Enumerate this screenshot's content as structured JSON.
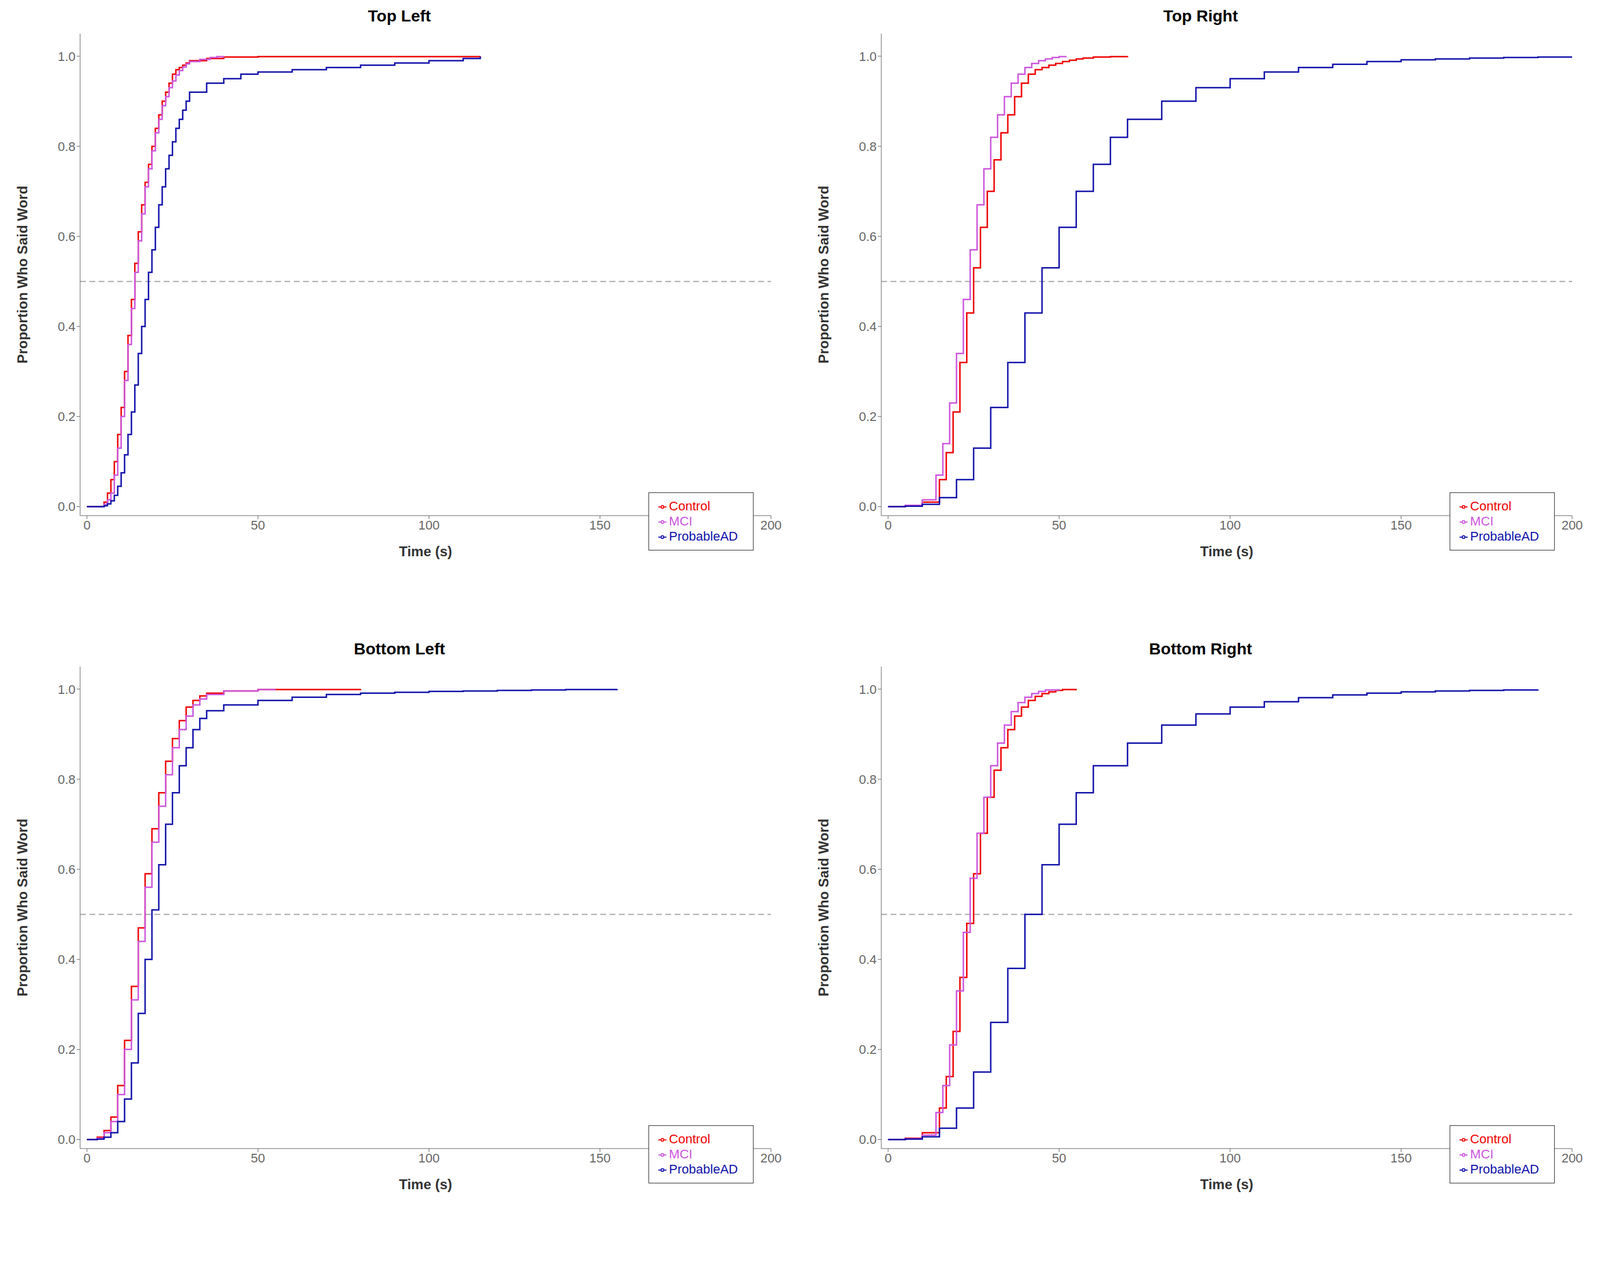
{
  "chart_data": [
    {
      "type": "step",
      "title": "Top Left",
      "x_label": "Time (s)",
      "y_label": "Proportion Who Said Word",
      "xlim": [
        -2,
        200
      ],
      "ylim": [
        -0.02,
        1.05
      ],
      "xticks": [
        0,
        50,
        100,
        150,
        200
      ],
      "yticks": [
        {
          "value": 0,
          "label": "0.0"
        },
        0.2,
        0.4,
        0.6,
        0.8,
        {
          "value": 1,
          "label": "1.0"
        }
      ],
      "grid": false,
      "legend": "lower right",
      "reference_lines": [
        {
          "y": 0.5,
          "color": "#aaaaaa",
          "line_style": "dashed"
        }
      ],
      "series": [
        {
          "name": "Control",
          "color": "#EE0000",
          "x": [
            0,
            5,
            6,
            7,
            8,
            9,
            10,
            11,
            12,
            13,
            14,
            15,
            16,
            17,
            18,
            19,
            20,
            21,
            22,
            23,
            24,
            25,
            26,
            27,
            28,
            29,
            30,
            35,
            40,
            50,
            115
          ],
          "values": [
            0,
            0.01,
            0.03,
            0.06,
            0.1,
            0.16,
            0.22,
            0.3,
            0.38,
            0.46,
            0.54,
            0.61,
            0.67,
            0.72,
            0.76,
            0.8,
            0.84,
            0.87,
            0.9,
            0.92,
            0.94,
            0.96,
            0.97,
            0.975,
            0.98,
            0.985,
            0.99,
            0.995,
            0.998,
            0.999,
            1.0
          ]
        },
        {
          "name": "MCI",
          "color": "#CC55DD",
          "x": [
            0,
            5,
            6,
            7,
            8,
            9,
            10,
            11,
            12,
            13,
            14,
            15,
            16,
            17,
            18,
            19,
            20,
            21,
            22,
            23,
            24,
            25,
            26,
            27,
            28,
            29,
            30,
            33,
            36,
            38,
            40
          ],
          "values": [
            0,
            0.005,
            0.015,
            0.03,
            0.07,
            0.13,
            0.2,
            0.28,
            0.36,
            0.44,
            0.52,
            0.59,
            0.65,
            0.71,
            0.75,
            0.79,
            0.83,
            0.86,
            0.89,
            0.91,
            0.93,
            0.945,
            0.958,
            0.968,
            0.976,
            0.983,
            0.988,
            0.993,
            0.997,
            0.999,
            1.0
          ]
        },
        {
          "name": "ProbableAD",
          "color": "#1111AA",
          "x": [
            0,
            5,
            6,
            7,
            8,
            9,
            10,
            11,
            12,
            13,
            14,
            15,
            16,
            17,
            18,
            19,
            20,
            21,
            22,
            23,
            24,
            25,
            26,
            27,
            28,
            29,
            30,
            35,
            40,
            45,
            50,
            60,
            70,
            80,
            90,
            100,
            110,
            115
          ],
          "values": [
            0,
            0.002,
            0.006,
            0.013,
            0.025,
            0.045,
            0.075,
            0.115,
            0.16,
            0.21,
            0.27,
            0.34,
            0.4,
            0.46,
            0.52,
            0.57,
            0.62,
            0.67,
            0.71,
            0.75,
            0.78,
            0.81,
            0.84,
            0.86,
            0.88,
            0.9,
            0.92,
            0.94,
            0.95,
            0.96,
            0.965,
            0.97,
            0.975,
            0.98,
            0.985,
            0.99,
            0.995,
            0.999
          ]
        }
      ]
    },
    {
      "type": "step",
      "title": "Top Right",
      "x_label": "Time (s)",
      "y_label": "Proportion Who Said Word",
      "xlim": [
        -2,
        200
      ],
      "ylim": [
        -0.02,
        1.05
      ],
      "xticks": [
        0,
        50,
        100,
        150,
        200
      ],
      "yticks": [
        {
          "value": 0,
          "label": "0.0"
        },
        0.2,
        0.4,
        0.6,
        0.8,
        {
          "value": 1,
          "label": "1.0"
        }
      ],
      "grid": false,
      "legend": "lower right",
      "reference_lines": [
        {
          "y": 0.5,
          "color": "#aaaaaa",
          "line_style": "dashed"
        }
      ],
      "series": [
        {
          "name": "Control",
          "color": "#EE0000",
          "x": [
            0,
            5,
            10,
            15,
            17,
            19,
            21,
            23,
            25,
            27,
            29,
            31,
            33,
            35,
            37,
            39,
            41,
            43,
            45,
            47,
            49,
            51,
            53,
            55,
            57,
            60,
            65,
            70
          ],
          "values": [
            0,
            0.002,
            0.01,
            0.06,
            0.12,
            0.21,
            0.32,
            0.43,
            0.53,
            0.62,
            0.7,
            0.77,
            0.83,
            0.87,
            0.91,
            0.94,
            0.96,
            0.97,
            0.975,
            0.98,
            0.984,
            0.988,
            0.991,
            0.994,
            0.996,
            0.998,
            0.999,
            1.0
          ]
        },
        {
          "name": "MCI",
          "color": "#CC55DD",
          "x": [
            0,
            5,
            10,
            14,
            16,
            18,
            20,
            22,
            24,
            26,
            28,
            30,
            32,
            34,
            36,
            38,
            40,
            42,
            44,
            46,
            48,
            50,
            52
          ],
          "values": [
            0,
            0.003,
            0.015,
            0.07,
            0.14,
            0.23,
            0.34,
            0.46,
            0.57,
            0.67,
            0.75,
            0.82,
            0.87,
            0.91,
            0.94,
            0.96,
            0.975,
            0.984,
            0.99,
            0.994,
            0.997,
            0.999,
            1.0
          ]
        },
        {
          "name": "ProbableAD",
          "color": "#1111AA",
          "x": [
            0,
            5,
            10,
            15,
            20,
            25,
            30,
            35,
            40,
            45,
            50,
            55,
            60,
            65,
            70,
            80,
            90,
            100,
            110,
            120,
            130,
            140,
            150,
            160,
            170,
            180,
            190,
            200
          ],
          "values": [
            0,
            0.001,
            0.005,
            0.02,
            0.06,
            0.13,
            0.22,
            0.32,
            0.43,
            0.53,
            0.62,
            0.7,
            0.76,
            0.82,
            0.86,
            0.9,
            0.93,
            0.95,
            0.965,
            0.975,
            0.982,
            0.988,
            0.992,
            0.994,
            0.996,
            0.997,
            0.998,
            0.999
          ]
        }
      ]
    },
    {
      "type": "step",
      "title": "Bottom Left",
      "x_label": "Time (s)",
      "y_label": "Proportion Who Said Word",
      "xlim": [
        -2,
        200
      ],
      "ylim": [
        -0.02,
        1.05
      ],
      "xticks": [
        0,
        50,
        100,
        150,
        200
      ],
      "yticks": [
        {
          "value": 0,
          "label": "0.0"
        },
        0.2,
        0.4,
        0.6,
        0.8,
        {
          "value": 1,
          "label": "1.0"
        }
      ],
      "grid": false,
      "legend": "lower right",
      "reference_lines": [
        {
          "y": 0.5,
          "color": "#aaaaaa",
          "line_style": "dashed"
        }
      ],
      "series": [
        {
          "name": "Control",
          "color": "#EE0000",
          "x": [
            0,
            3,
            5,
            7,
            9,
            11,
            13,
            15,
            17,
            19,
            21,
            23,
            25,
            27,
            29,
            31,
            33,
            35,
            40,
            50,
            80
          ],
          "values": [
            0,
            0.005,
            0.02,
            0.05,
            0.12,
            0.22,
            0.34,
            0.47,
            0.59,
            0.69,
            0.77,
            0.84,
            0.89,
            0.93,
            0.96,
            0.975,
            0.985,
            0.991,
            0.996,
            0.999,
            1.0
          ]
        },
        {
          "name": "MCI",
          "color": "#CC55DD",
          "x": [
            0,
            3,
            5,
            7,
            9,
            11,
            13,
            15,
            17,
            19,
            21,
            23,
            25,
            27,
            29,
            31,
            33,
            35,
            40,
            50,
            55
          ],
          "values": [
            0,
            0.003,
            0.015,
            0.04,
            0.1,
            0.2,
            0.31,
            0.44,
            0.56,
            0.66,
            0.74,
            0.81,
            0.87,
            0.91,
            0.94,
            0.965,
            0.978,
            0.988,
            0.996,
            0.999,
            1.0
          ]
        },
        {
          "name": "ProbableAD",
          "color": "#1111AA",
          "x": [
            0,
            3,
            5,
            7,
            9,
            11,
            13,
            15,
            17,
            19,
            21,
            23,
            25,
            27,
            29,
            31,
            33,
            35,
            40,
            50,
            60,
            70,
            80,
            90,
            100,
            110,
            120,
            130,
            140,
            155
          ],
          "values": [
            0,
            0.001,
            0.005,
            0.015,
            0.04,
            0.09,
            0.17,
            0.28,
            0.4,
            0.51,
            0.61,
            0.7,
            0.77,
            0.83,
            0.87,
            0.91,
            0.935,
            0.952,
            0.965,
            0.975,
            0.982,
            0.988,
            0.991,
            0.993,
            0.995,
            0.996,
            0.997,
            0.998,
            0.999,
            1.0
          ]
        }
      ]
    },
    {
      "type": "step",
      "title": "Bottom Right",
      "x_label": "Time (s)",
      "y_label": "Proportion Who Said Word",
      "xlim": [
        -2,
        200
      ],
      "ylim": [
        -0.02,
        1.05
      ],
      "xticks": [
        0,
        50,
        100,
        150,
        200
      ],
      "yticks": [
        {
          "value": 0,
          "label": "0.0"
        },
        0.2,
        0.4,
        0.6,
        0.8,
        {
          "value": 1,
          "label": "1.0"
        }
      ],
      "grid": false,
      "legend": "lower right",
      "reference_lines": [
        {
          "y": 0.5,
          "color": "#aaaaaa",
          "line_style": "dashed"
        }
      ],
      "series": [
        {
          "name": "Control",
          "color": "#EE0000",
          "x": [
            0,
            5,
            10,
            15,
            17,
            19,
            21,
            23,
            25,
            27,
            29,
            31,
            33,
            35,
            37,
            39,
            41,
            43,
            45,
            47,
            49,
            51,
            55
          ],
          "values": [
            0,
            0.003,
            0.015,
            0.07,
            0.14,
            0.24,
            0.36,
            0.48,
            0.59,
            0.68,
            0.76,
            0.82,
            0.87,
            0.91,
            0.94,
            0.96,
            0.975,
            0.984,
            0.99,
            0.994,
            0.997,
            0.999,
            1.0
          ]
        },
        {
          "name": "MCI",
          "color": "#CC55DD",
          "x": [
            0,
            5,
            10,
            14,
            16,
            18,
            20,
            22,
            24,
            26,
            28,
            30,
            32,
            34,
            36,
            38,
            40,
            42,
            44,
            46,
            50
          ],
          "values": [
            0,
            0.002,
            0.01,
            0.06,
            0.12,
            0.21,
            0.33,
            0.46,
            0.58,
            0.68,
            0.76,
            0.83,
            0.88,
            0.92,
            0.95,
            0.97,
            0.982,
            0.99,
            0.995,
            0.998,
            1.0
          ]
        },
        {
          "name": "ProbableAD",
          "color": "#1111AA",
          "x": [
            0,
            5,
            10,
            15,
            20,
            25,
            30,
            35,
            40,
            45,
            50,
            55,
            60,
            70,
            80,
            90,
            100,
            110,
            120,
            130,
            140,
            150,
            160,
            170,
            180,
            190
          ],
          "values": [
            0,
            0.001,
            0.006,
            0.025,
            0.07,
            0.15,
            0.26,
            0.38,
            0.5,
            0.61,
            0.7,
            0.77,
            0.83,
            0.88,
            0.92,
            0.945,
            0.96,
            0.972,
            0.981,
            0.987,
            0.991,
            0.994,
            0.996,
            0.997,
            0.998,
            0.999
          ]
        }
      ]
    }
  ]
}
